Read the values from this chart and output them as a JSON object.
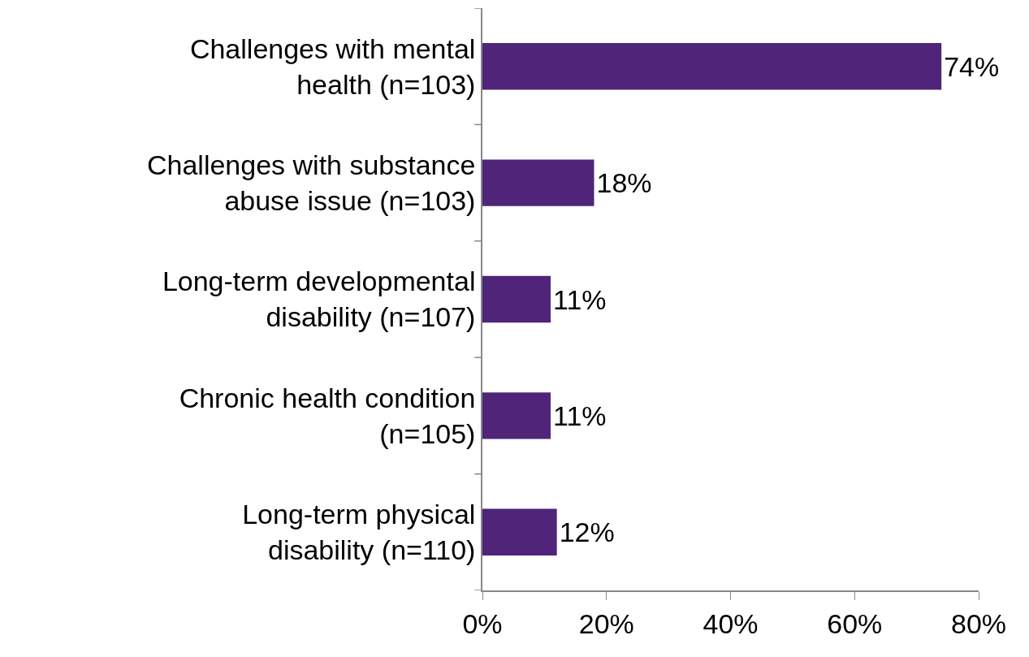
{
  "chart_data": {
    "type": "bar",
    "orientation": "horizontal",
    "categories": [
      "Challenges with mental\nhealth (n=103)",
      "Challenges with substance\nabuse issue (n=103)",
      "Long-term developmental\ndisability (n=107)",
      "Chronic health condition\n(n=105)",
      "Long-term physical\ndisability (n=110)"
    ],
    "values": [
      74,
      18,
      11,
      11,
      12
    ],
    "value_labels": [
      "74%",
      "18%",
      "11%",
      "11%",
      "12%"
    ],
    "color": "#4f2479",
    "xlim": [
      0,
      80
    ],
    "xticks": [
      {
        "value": 0,
        "label": "0%"
      },
      {
        "value": 20,
        "label": "20%"
      },
      {
        "value": 40,
        "label": "40%"
      },
      {
        "value": 60,
        "label": "60%"
      },
      {
        "value": 80,
        "label": "80%"
      }
    ],
    "grid": false,
    "legend": false
  }
}
